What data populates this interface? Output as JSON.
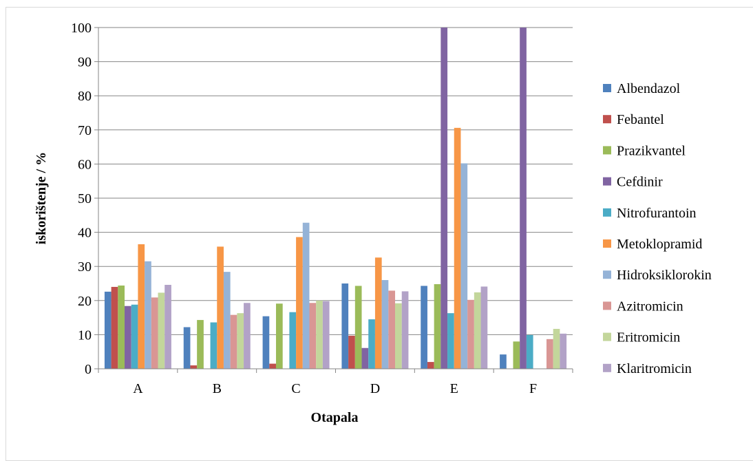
{
  "chart_data": {
    "type": "bar",
    "title": "",
    "xlabel": "Otapala",
    "ylabel": "iskorištenje / %",
    "ylim": [
      0,
      100
    ],
    "yticks": [
      0,
      10,
      20,
      30,
      40,
      50,
      60,
      70,
      80,
      90,
      100
    ],
    "grid": true,
    "legend_position": "right",
    "categories": [
      "A",
      "B",
      "C",
      "D",
      "E",
      "F"
    ],
    "series": [
      {
        "name": "Albendazol",
        "color": "#4f81bd",
        "values": [
          22.6,
          12.2,
          15.4,
          25.0,
          24.3,
          4.2
        ]
      },
      {
        "name": "Febantel",
        "color": "#c0504d",
        "values": [
          24.0,
          1.0,
          1.5,
          9.7,
          2.0,
          0
        ]
      },
      {
        "name": "Prazikvantel",
        "color": "#9bbb59",
        "values": [
          24.4,
          14.3,
          19.1,
          24.3,
          24.8,
          8.0
        ]
      },
      {
        "name": "Cefdinir",
        "color": "#8064a2",
        "values": [
          18.4,
          0,
          0,
          6.1,
          100,
          100
        ]
      },
      {
        "name": "Nitrofurantoin",
        "color": "#4bacc6",
        "values": [
          18.8,
          13.6,
          16.6,
          14.5,
          16.3,
          9.9
        ]
      },
      {
        "name": "Metoklopramid",
        "color": "#f79646",
        "values": [
          36.5,
          35.8,
          38.6,
          32.6,
          70.6,
          0
        ]
      },
      {
        "name": "Hidroksiklorokin",
        "color": "#95b3d7",
        "values": [
          31.5,
          28.4,
          42.8,
          26.0,
          60.2,
          0
        ]
      },
      {
        "name": "Azitromicin",
        "color": "#d99694",
        "values": [
          20.9,
          15.8,
          19.3,
          22.9,
          20.2,
          8.7
        ]
      },
      {
        "name": "Eritromicin",
        "color": "#c3d69b",
        "values": [
          22.3,
          16.3,
          20.0,
          19.2,
          22.4,
          11.7
        ]
      },
      {
        "name": "Klaritromicin",
        "color": "#b2a2c7",
        "values": [
          24.6,
          19.3,
          19.8,
          22.7,
          24.1,
          10.3
        ]
      }
    ]
  }
}
